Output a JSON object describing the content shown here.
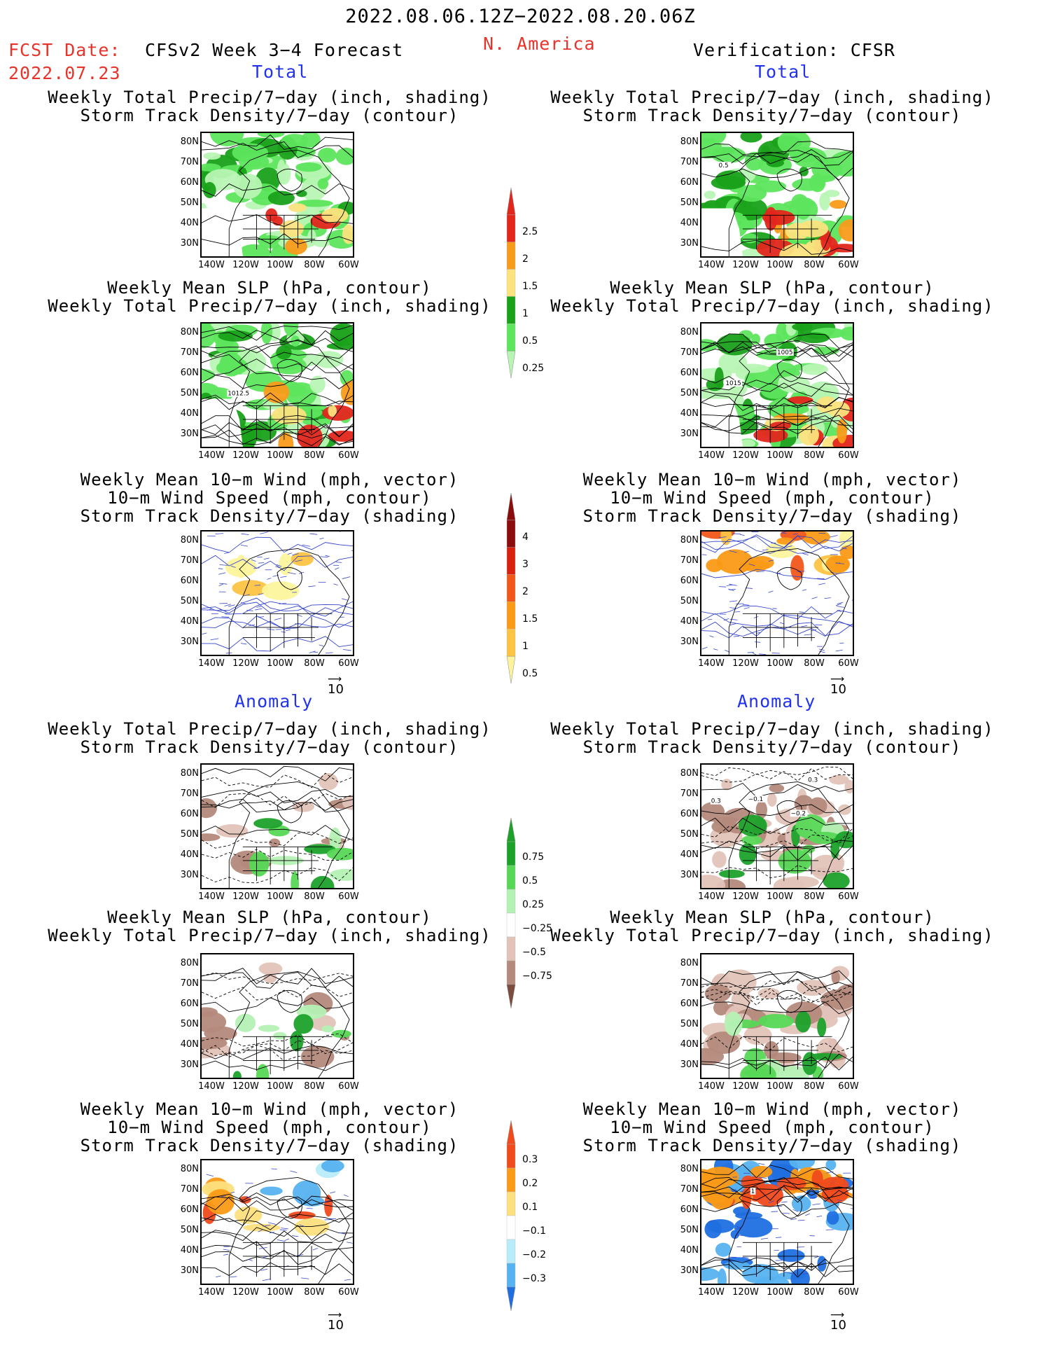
{
  "header": {
    "period": "2022.08.06.12Z−2022.08.20.06Z",
    "fcst_label": "FCST Date:",
    "fcst_date": "2022.07.23",
    "left_title": "CFSv2 Week 3−4 Forecast",
    "region": "N. America",
    "right_title": "Verification: CFSR"
  },
  "sections": {
    "total": "Total",
    "anomaly": "Anomaly"
  },
  "panel_titles": {
    "precip_storm": [
      "Weekly Total Precip/7−day (inch, shading)",
      "Storm Track Density/7−day (contour)"
    ],
    "slp_precip": [
      "Weekly Mean SLP (hPa, contour)",
      "Weekly Total Precip/7−day (inch, shading)"
    ],
    "wind": [
      "Weekly Mean 10−m Wind (mph, vector)",
      "10−m Wind Speed (mph, contour)",
      "Storm Track Density/7−day (shading)"
    ]
  },
  "axes": {
    "lat_ticks": [
      "80N",
      "70N",
      "60N",
      "50N",
      "40N",
      "30N"
    ],
    "lon_ticks": [
      "140W",
      "120W",
      "100W",
      "80W",
      "60W"
    ]
  },
  "vector_ref": "10",
  "map_labels": {
    "fcst_slp": "1012.5",
    "obs_storm": "0.5",
    "obs_slp_a": "1005",
    "obs_slp_b": "1015",
    "anom_obs_a": "0.3",
    "anom_obs_b": "−0.1",
    "anom_obs_c": "−0.2",
    "anom_obs_d": "0.3",
    "anom_wind_obs": "1"
  },
  "colorbars": {
    "precip_total": {
      "labels": [
        "2.5",
        "2",
        "1.5",
        "1",
        "0.5",
        "0.25"
      ],
      "colors": [
        "#e3261c",
        "#f99b1a",
        "#fbe37e",
        "#1aa11a",
        "#5de55d",
        "#b8f5b4"
      ]
    },
    "storm_total": {
      "labels": [
        "4",
        "3",
        "2",
        "1.5",
        "1",
        "0.5"
      ],
      "colors": [
        "#8b0c0c",
        "#d9210f",
        "#f2571a",
        "#fa9a16",
        "#fdc444",
        "#fcf49c"
      ]
    },
    "precip_anom": {
      "labels": [
        "0.75",
        "0.5",
        "0.25",
        "−0.25",
        "−0.5",
        "−0.75"
      ],
      "colors": [
        "#1ca22b",
        "#56d856",
        "#b4f1b4",
        "#ffffff",
        "#e2c3b8",
        "#b48a7c",
        "#7c4d3c"
      ]
    },
    "storm_anom": {
      "labels": [
        "0.3",
        "0.2",
        "0.1",
        "−0.1",
        "−0.2",
        "−0.3"
      ],
      "colors": [
        "#f04a1d",
        "#fa9a16",
        "#fde07e",
        "#ffffff",
        "#b9ecf9",
        "#56b2f0",
        "#1f6fe0"
      ]
    }
  }
}
